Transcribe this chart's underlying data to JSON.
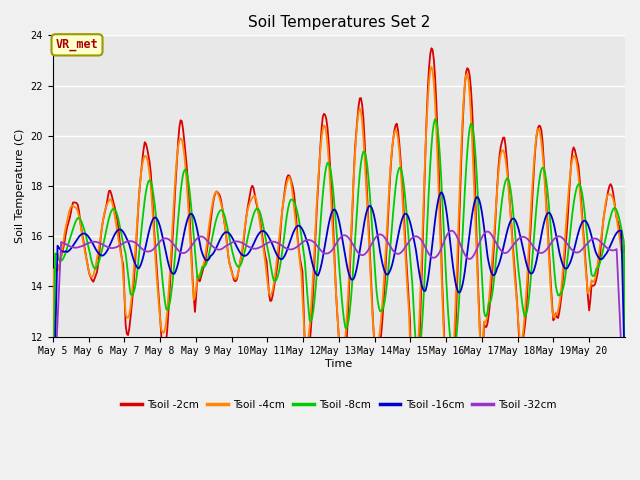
{
  "title": "Soil Temperatures Set 2",
  "xlabel": "Time",
  "ylabel": "Soil Temperature (C)",
  "ylim": [
    12,
    24
  ],
  "yticks": [
    12,
    14,
    16,
    18,
    20,
    22,
    24
  ],
  "fig_bg_color": "#f0f0f0",
  "plot_bg_color": "#e8e8e8",
  "series_colors": [
    "#dd0000",
    "#ff8800",
    "#00cc00",
    "#0000cc",
    "#9933cc"
  ],
  "series_labels": [
    "Tsoil -2cm",
    "Tsoil -4cm",
    "Tsoil -8cm",
    "Tsoil -16cm",
    "Tsoil -32cm"
  ],
  "annotation_text": "VR_met",
  "annotation_color": "#aa0000",
  "annotation_bg": "#ffffcc",
  "annotation_border": "#999900",
  "xtick_labels": [
    "May 5",
    "May 6",
    "May 7",
    "May 8",
    "May 9",
    "May 10",
    "May 11",
    "May 12",
    "May 13",
    "May 14",
    "May 15",
    "May 16",
    "May 17",
    "May 18",
    "May 19",
    "May 20"
  ],
  "grid_color": "#ffffff",
  "line_width": 1.3,
  "n_points": 480,
  "title_fontsize": 11,
  "tick_fontsize": 7,
  "label_fontsize": 8
}
